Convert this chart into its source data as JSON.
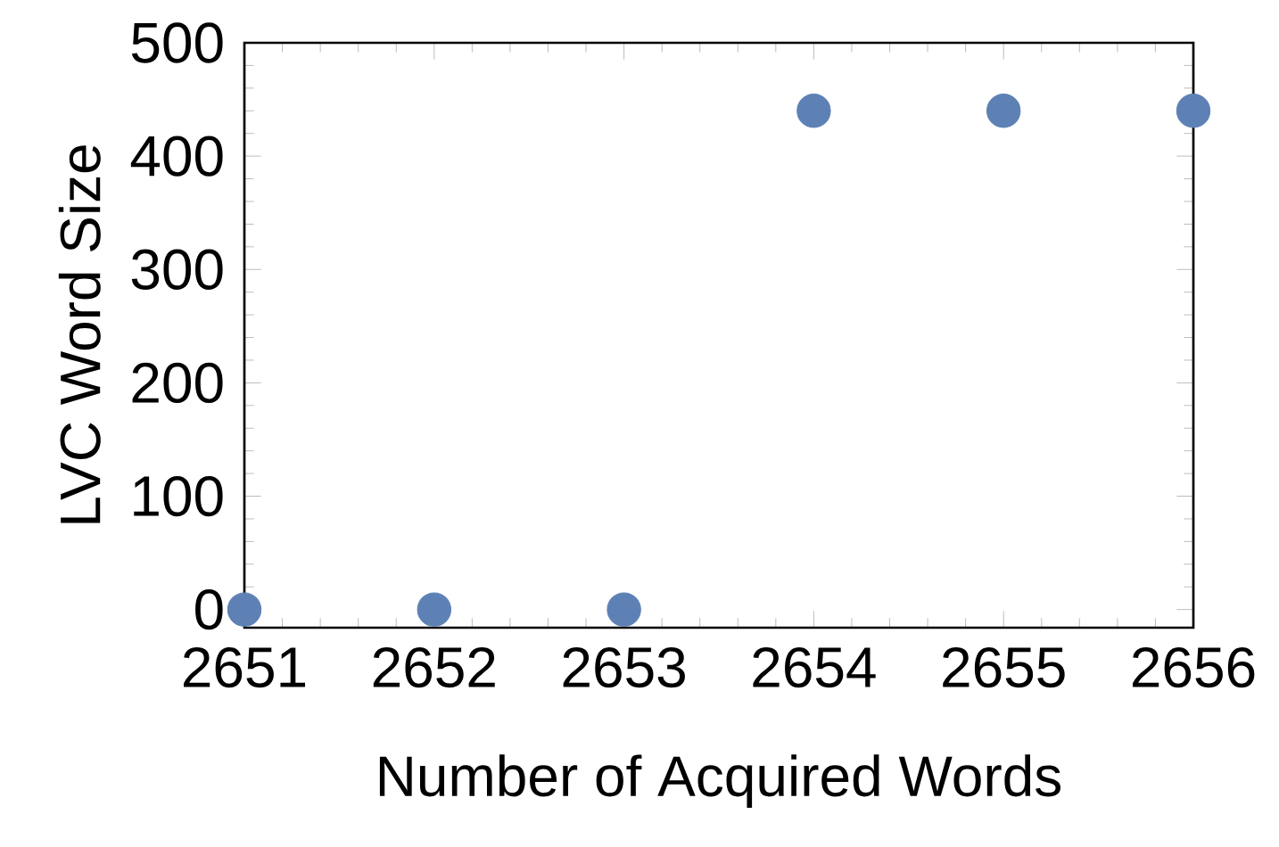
{
  "chart_data": {
    "type": "scatter",
    "xlabel": "Number of Acquired Words",
    "ylabel": "LVC Word Size",
    "x": [
      2651,
      2652,
      2653,
      2654,
      2655,
      2656
    ],
    "values": [
      0,
      0,
      0,
      440,
      440,
      440
    ],
    "color": "#5e81b5",
    "marker": "circle",
    "xlim": [
      2651,
      2656
    ],
    "ylim": [
      -16,
      500
    ],
    "xticks": [
      2651,
      2652,
      2653,
      2654,
      2655,
      2656
    ],
    "yticks": [
      0,
      100,
      200,
      300,
      400,
      500
    ]
  }
}
